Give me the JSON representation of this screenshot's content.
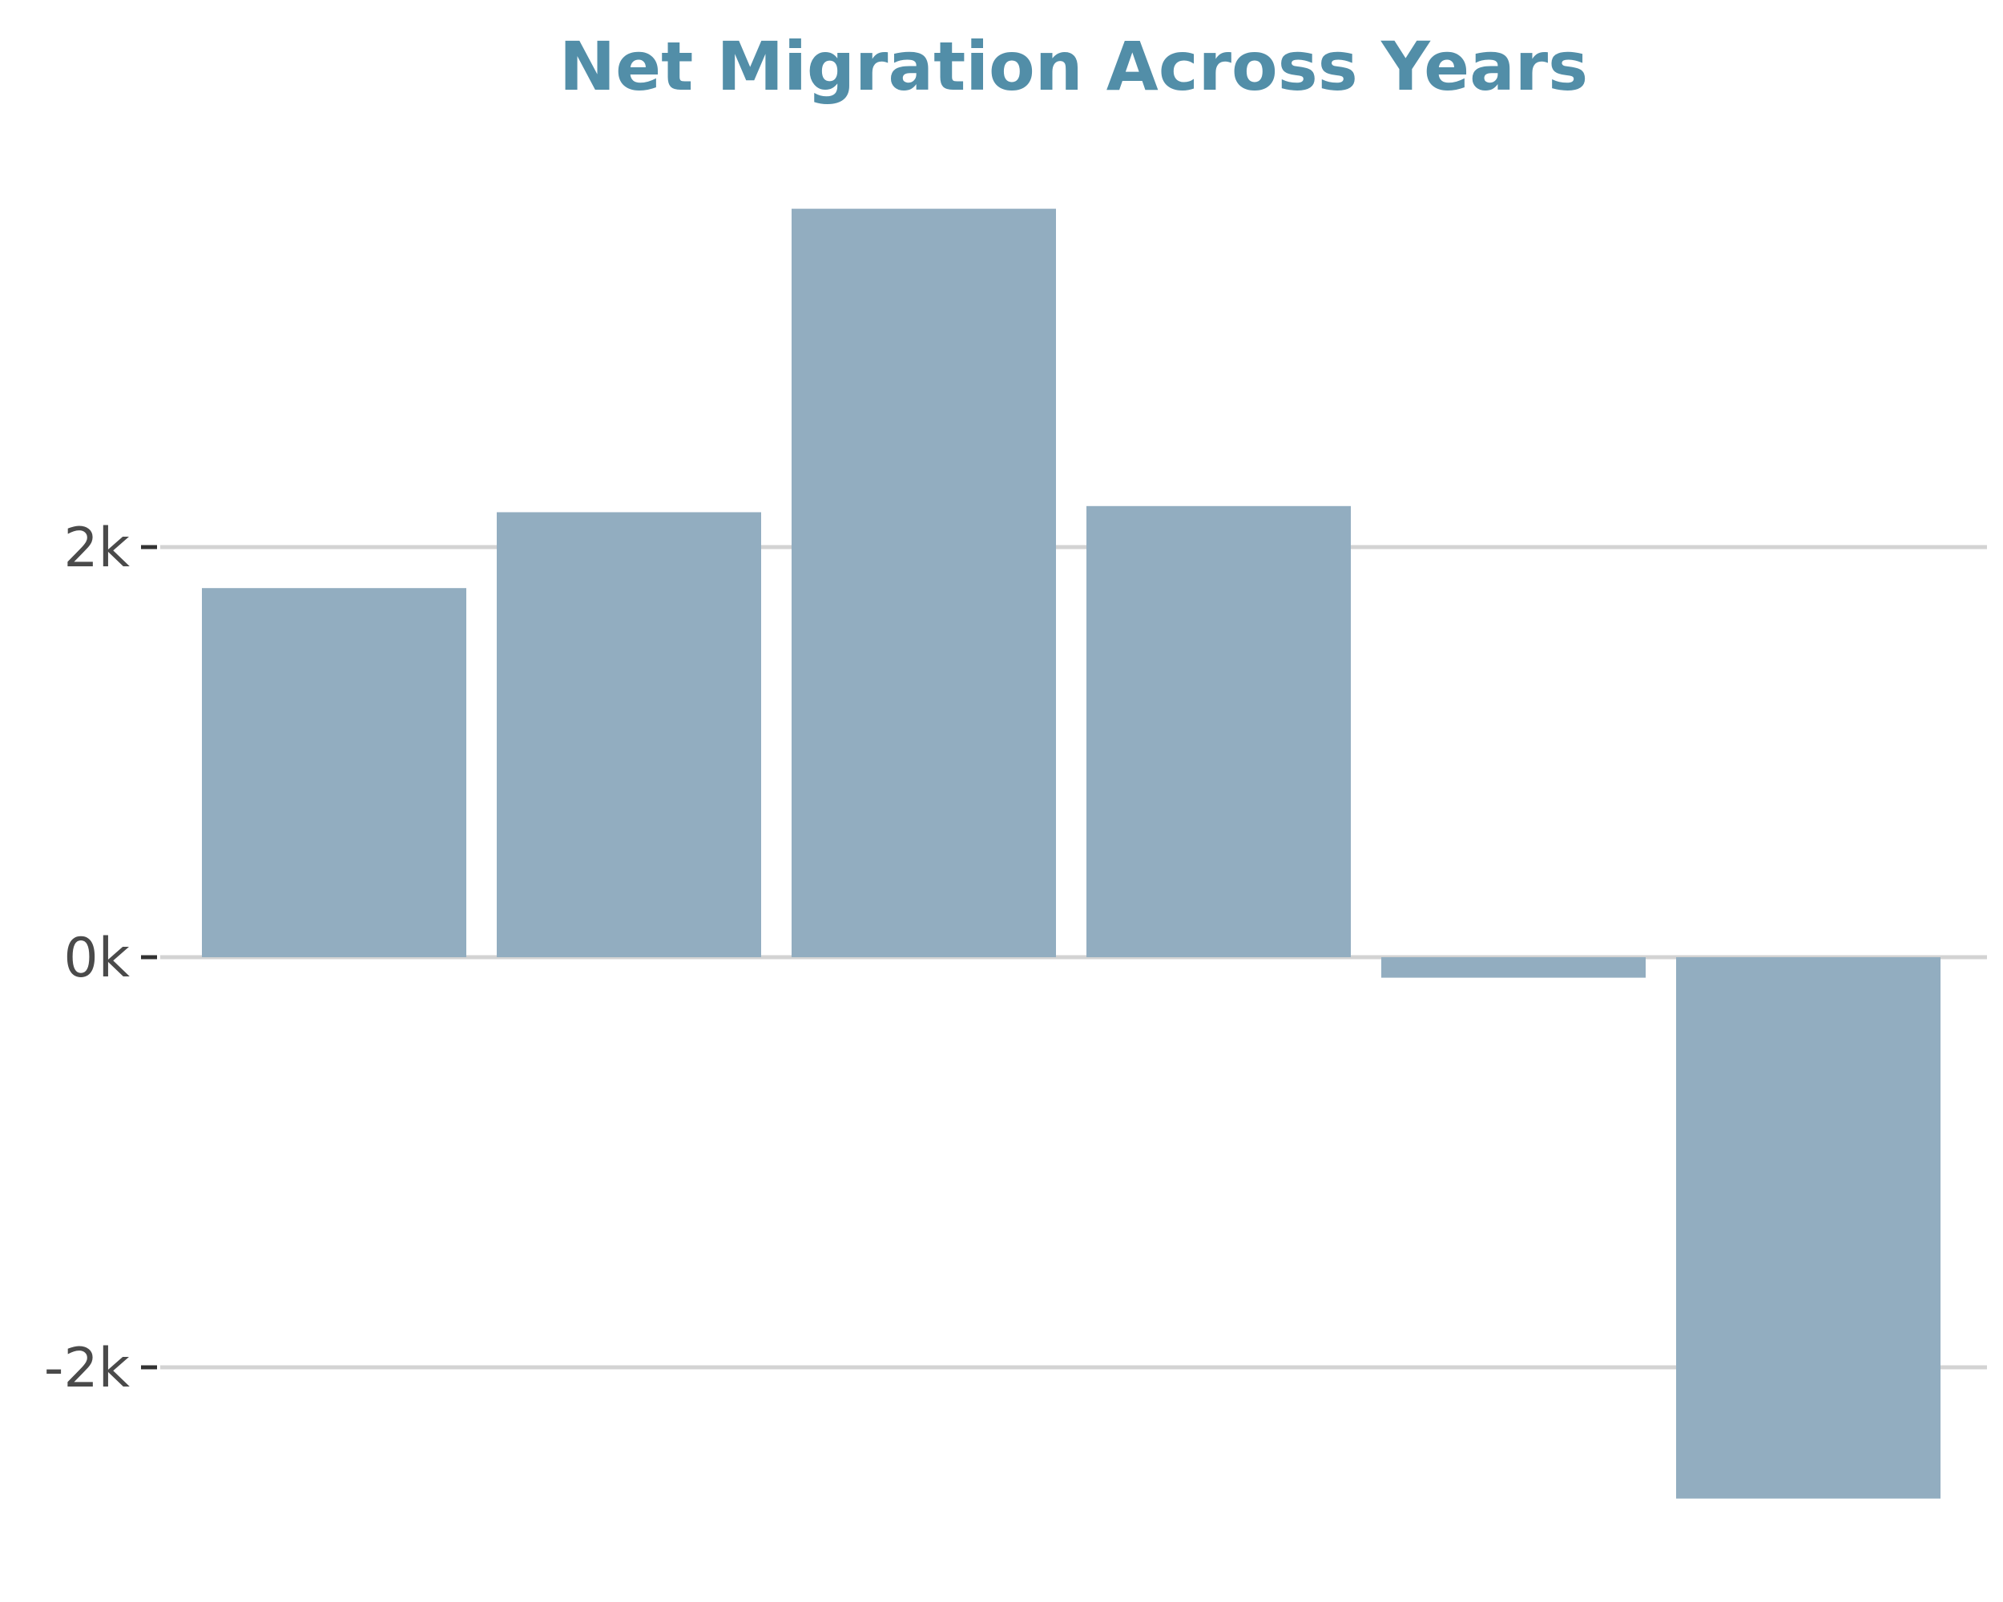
{
  "chart_data": {
    "type": "bar",
    "title": "Net Migration Across Years",
    "xlabel": "",
    "ylabel": "",
    "categories": [
      "",
      "",
      "",
      "",
      "",
      ""
    ],
    "values": [
      1800,
      2170,
      3650,
      2200,
      -100,
      -2640
    ],
    "ylim": [
      -2800,
      3800
    ],
    "yticks": [
      -2000,
      0,
      2000
    ],
    "ytick_labels": [
      "-2k",
      "0k",
      "2k"
    ],
    "grid": true,
    "legend": "none",
    "colors": {
      "bar": "#92adc0",
      "title": "#528ea8",
      "grid": "#d3d3d3",
      "tick_text": "#4a4a4a"
    }
  }
}
